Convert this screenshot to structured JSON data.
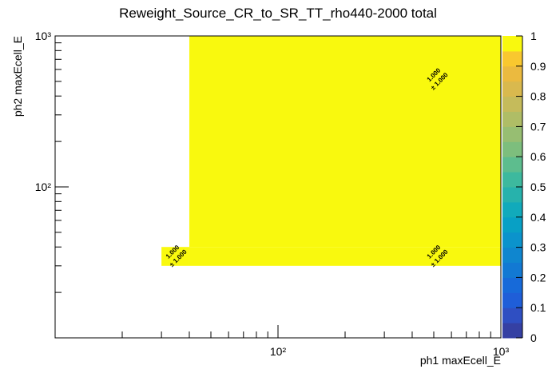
{
  "chart_data": {
    "type": "heatmap",
    "title": "Reweight_Source_CR_to_SR_TT_rho440-2000 total",
    "x_label": "ph1 maxEcell_E",
    "y_label": "ph2 maxEcell_E",
    "x_bins": [
      30,
      40,
      1000
    ],
    "y_bins": [
      30,
      40,
      1000
    ],
    "z": [
      [
        1,
        1
      ],
      [
        null,
        1
      ]
    ],
    "value_labels": [
      [
        "1.000",
        "1.000"
      ],
      [
        null,
        "1.000"
      ]
    ],
    "errors": [
      [
        1,
        1
      ],
      [
        null,
        1
      ]
    ],
    "error_labels": [
      [
        "± 1.000",
        "± 1.000"
      ],
      [
        null,
        "± 1.000"
      ]
    ],
    "xlim": [
      10,
      1000
    ],
    "ylim": [
      10,
      1000
    ],
    "log_x": true,
    "log_y": true,
    "xticks": [
      {
        "value": 100,
        "label": "10²"
      },
      {
        "value": 1000,
        "label": "10³"
      }
    ],
    "yticks": [
      {
        "value": 100,
        "label": "10²"
      },
      {
        "value": 1000,
        "label": "10³"
      }
    ],
    "zlim": [
      0,
      1
    ],
    "zticks": [
      0,
      0.1,
      0.2,
      0.3,
      0.4,
      0.5,
      0.6,
      0.7,
      0.8,
      0.9,
      1
    ],
    "palette": [
      "#3540a3",
      "#2f4fc2",
      "#1f5ed8",
      "#176ad9",
      "#1279d3",
      "#0f86cf",
      "#0b93cc",
      "#08a0c5",
      "#11aabb",
      "#27b2ac",
      "#3db99e",
      "#5dbd8e",
      "#7dbe7d",
      "#97be72",
      "#afbd66",
      "#c5bb5b",
      "#d9b94e",
      "#ebba3f",
      "#f9c82f",
      "#f9f90e"
    ]
  }
}
